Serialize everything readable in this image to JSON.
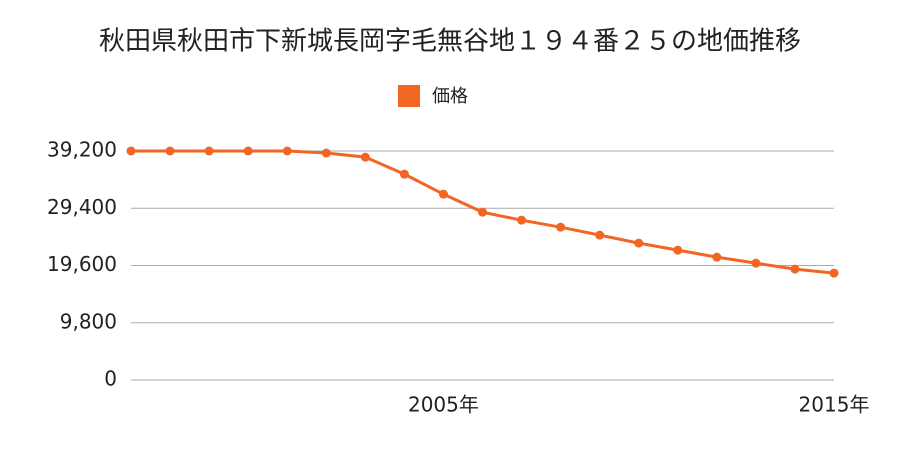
{
  "chart_data": {
    "type": "line",
    "title": "秋田県秋田市下新城長岡字毛無谷地１９４番２５の地価推移",
    "x": [
      1997,
      1998,
      1999,
      2000,
      2001,
      2002,
      2003,
      2004,
      2005,
      2006,
      2007,
      2008,
      2009,
      2010,
      2011,
      2012,
      2013,
      2014,
      2015
    ],
    "series": [
      {
        "name": "価格",
        "color": "#f26522",
        "values": [
          39200,
          39200,
          39200,
          39200,
          39200,
          38850,
          38150,
          35240,
          31810,
          28730,
          27360,
          26160,
          24800,
          23430,
          22230,
          21030,
          20000,
          18980,
          18300
        ]
      }
    ],
    "xlim": [
      1997,
      2015
    ],
    "xticks": [
      {
        "value": 2005,
        "label": "2005年"
      },
      {
        "value": 2015,
        "label": "2015年"
      }
    ],
    "ylim": [
      0,
      39200
    ],
    "yticks": [
      0,
      {
        "value": 9800,
        "label": "9,800"
      },
      {
        "value": 19600,
        "label": "19,600"
      },
      {
        "value": 29400,
        "label": "29,400"
      },
      {
        "value": 39200,
        "label": "39,200"
      }
    ],
    "grid": true
  }
}
